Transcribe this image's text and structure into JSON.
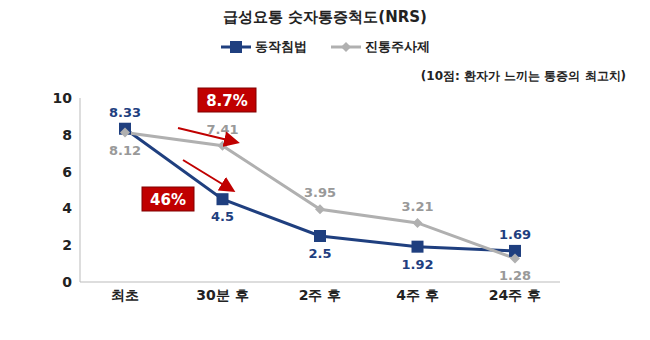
{
  "chart_data": {
    "type": "line",
    "title": "급성요통 숫자통증척도(NRS)",
    "subtitle": "(10점: 환자가 느끼는 통증의 최고치)",
    "categories": [
      "최초",
      "30분 후",
      "2주 후",
      "4주 후",
      "24주 후"
    ],
    "series": [
      {
        "name": "동작침법",
        "color": "#1f3f7f",
        "marker": "square",
        "values": [
          8.33,
          4.5,
          2.5,
          1.92,
          1.69
        ]
      },
      {
        "name": "진통주사제",
        "color": "#b0b0b0",
        "marker": "diamond",
        "values": [
          8.12,
          7.41,
          3.95,
          3.21,
          1.28
        ]
      }
    ],
    "ylim": [
      0,
      10
    ],
    "yticks": [
      0,
      2,
      4,
      6,
      8,
      10
    ],
    "grid": false,
    "data_labels": true,
    "annotations": [
      {
        "text": "8.7%"
      },
      {
        "text": "46%"
      }
    ]
  }
}
